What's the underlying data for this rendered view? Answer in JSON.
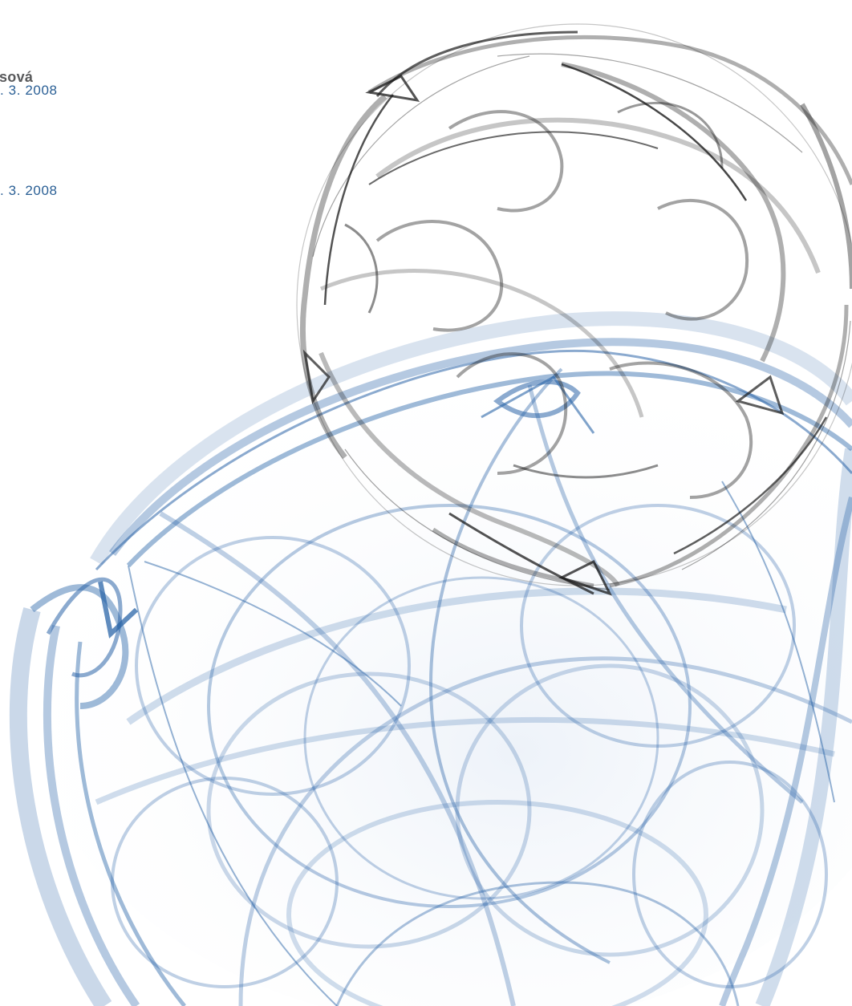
{
  "caption": {
    "name": "sová",
    "date_1": ". 3. 2008",
    "date_2": ". 3. 2008"
  },
  "artwork": {
    "description_colors": {
      "blue_strands": "#2b65a8",
      "black_strands": "#1a1a1a",
      "background": "#ffffff"
    }
  }
}
